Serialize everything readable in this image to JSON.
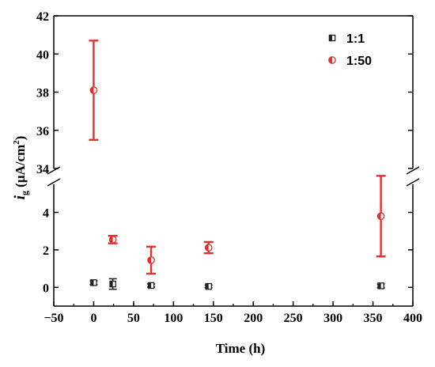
{
  "chart_data": {
    "type": "scatter",
    "title": "",
    "xlabel": "Time (h)",
    "ylabel": {
      "symbol": "i",
      "subscript": "g",
      "unit": " (μA/cm",
      "superscript": "2",
      "close": ")"
    },
    "xlim": [
      -50,
      400
    ],
    "ylim_lower": [
      -1,
      5.5
    ],
    "ylim_upper": [
      34,
      42
    ],
    "axis_break": true,
    "x_ticks": [
      "−50",
      "0",
      "50",
      "100",
      "150",
      "200",
      "250",
      "300",
      "350",
      "400"
    ],
    "y_ticks_lower": [
      "0",
      "2",
      "4"
    ],
    "y_ticks_upper": [
      "34",
      "36",
      "38",
      "40",
      "42"
    ],
    "legend_placement": "top-right",
    "grid": false,
    "series": [
      {
        "name": "1:1",
        "color": "#222222",
        "marker": "half-filled-square",
        "points": [
          {
            "x": 0,
            "y": 0.25,
            "err": 0.1
          },
          {
            "x": 24,
            "y": 0.18,
            "err": 0.28
          },
          {
            "x": 72,
            "y": 0.1,
            "err": 0.08
          },
          {
            "x": 144,
            "y": 0.05,
            "err": 0.07
          },
          {
            "x": 360,
            "y": 0.08,
            "err": 0.1
          }
        ]
      },
      {
        "name": "1:50",
        "color": "#e03030",
        "marker": "half-filled-circle",
        "points": [
          {
            "x": 0,
            "y": 38.1,
            "err": 2.6
          },
          {
            "x": 24,
            "y": 2.55,
            "err": 0.2
          },
          {
            "x": 72,
            "y": 1.45,
            "err": 0.72
          },
          {
            "x": 144,
            "y": 2.12,
            "err": 0.3
          },
          {
            "x": 360,
            "y": 3.8,
            "err": 2.15
          }
        ]
      }
    ]
  }
}
